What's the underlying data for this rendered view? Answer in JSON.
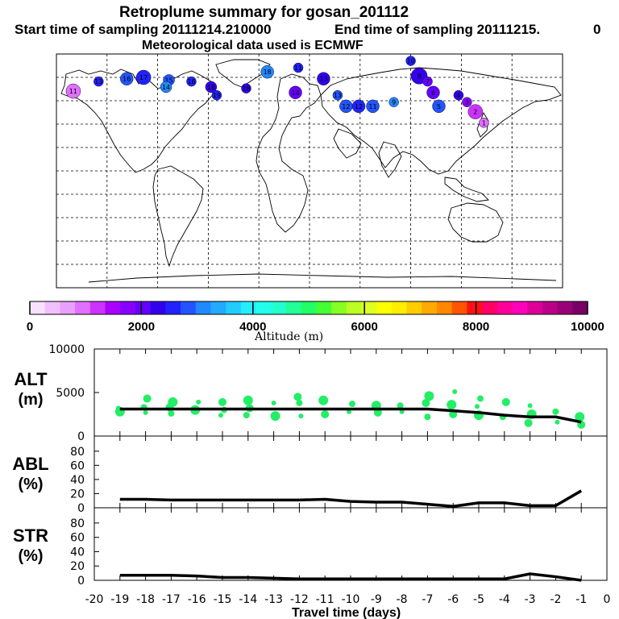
{
  "header": {
    "title": "Retroplume summary for gosan_201112",
    "start_label": "Start time of sampling 20111214.210000",
    "end_label": "End time of sampling 20111215.",
    "end_value": "0",
    "met_label": "Meteorological data used is ECMWF"
  },
  "colors": {
    "accent_green": "#22ee66",
    "line": "#000000",
    "colorbar": [
      "#f8e0ff",
      "#f0c0ff",
      "#e8a0ff",
      "#e070ff",
      "#cc33ff",
      "#aa00ff",
      "#8800ff",
      "#6600ff",
      "#3300ee",
      "#2222ff",
      "#2255ff",
      "#2288ff",
      "#22aaff",
      "#22ccff",
      "#22eeff",
      "#22ffee",
      "#22ffcc",
      "#22ff99",
      "#22ff66",
      "#44ff33",
      "#88ff22",
      "#bbff22",
      "#ddff22",
      "#ffff00",
      "#ffee00",
      "#ffcc00",
      "#ffaa00",
      "#ff8800",
      "#ff5500",
      "#ff1111",
      "#ff0066",
      "#ff0099",
      "#ff00bb",
      "#dd0099",
      "#bb0088",
      "#990077",
      "#770066"
    ]
  },
  "colorbar": {
    "ticks": [
      "0",
      "2000",
      "4000",
      "6000",
      "8000",
      "10000"
    ],
    "label": "Altitude (m)"
  },
  "map_markers": [
    {
      "lon": -168,
      "lat": 63,
      "alt": 1000,
      "label": "11"
    },
    {
      "lon": -150,
      "lat": 70,
      "alt": 2600,
      "label": "13"
    },
    {
      "lon": -130,
      "lat": 72,
      "alt": 2800,
      "label": "16"
    },
    {
      "lon": -118,
      "lat": 73,
      "alt": 2600,
      "label": "17"
    },
    {
      "lon": -100,
      "lat": 71,
      "alt": 2900,
      "label": "15"
    },
    {
      "lon": -102,
      "lat": 66,
      "alt": 3200,
      "label": "14"
    },
    {
      "lon": -84,
      "lat": 70,
      "alt": 2600,
      "label": "16"
    },
    {
      "lon": -70,
      "lat": 66,
      "alt": 2400,
      "label": "18"
    },
    {
      "lon": -66,
      "lat": 60,
      "alt": 2600,
      "label": "19"
    },
    {
      "lon": -45,
      "lat": 65,
      "alt": 2400,
      "label": "18"
    },
    {
      "lon": -30,
      "lat": 77,
      "alt": 3000,
      "label": "18"
    },
    {
      "lon": -8,
      "lat": 80,
      "alt": 2500,
      "label": "11"
    },
    {
      "lon": -10,
      "lat": 62,
      "alt": 2100,
      "label": "14"
    },
    {
      "lon": 10,
      "lat": 72,
      "alt": 2300,
      "label": "13"
    },
    {
      "lon": 20,
      "lat": 60,
      "alt": 2800,
      "label": "13"
    },
    {
      "lon": 26,
      "lat": 52,
      "alt": 2900,
      "label": "12"
    },
    {
      "lon": 35,
      "lat": 52,
      "alt": 2600,
      "label": "12"
    },
    {
      "lon": 45,
      "lat": 52,
      "alt": 2900,
      "label": "11"
    },
    {
      "lon": 60,
      "lat": 55,
      "alt": 3000,
      "label": "9"
    },
    {
      "lon": 72,
      "lat": 85,
      "alt": 2600,
      "label": "10"
    },
    {
      "lon": 78,
      "lat": 74,
      "alt": 2200,
      "label": "8"
    },
    {
      "lon": 84,
      "lat": 70,
      "alt": 2000,
      "label": "7"
    },
    {
      "lon": 88,
      "lat": 62,
      "alt": 2100,
      "label": "6"
    },
    {
      "lon": 92,
      "lat": 52,
      "alt": 2900,
      "label": "5"
    },
    {
      "lon": 106,
      "lat": 60,
      "alt": 2300,
      "label": "4"
    },
    {
      "lon": 112,
      "lat": 55,
      "alt": 1800,
      "label": "3"
    },
    {
      "lon": 118,
      "lat": 48,
      "alt": 1300,
      "label": "2"
    },
    {
      "lon": 124,
      "lat": 40,
      "alt": 1000,
      "label": "1"
    }
  ],
  "chart_data": [
    {
      "type": "scatter+line",
      "name": "ALT",
      "ylabel": "ALT",
      "yunit": "(m)",
      "ylim": [
        0,
        10000
      ],
      "yticks": [
        "0",
        "5000",
        "10000"
      ],
      "x": [
        -19,
        -18,
        -17,
        -16,
        -15,
        -14,
        -13,
        -12,
        -11,
        -10,
        -9,
        -8,
        -7,
        -6,
        -5,
        -4,
        -3,
        -2,
        -1
      ],
      "line": [
        3100,
        3100,
        3100,
        3100,
        3100,
        3100,
        3100,
        3100,
        3100,
        3100,
        3100,
        3100,
        3100,
        2900,
        2700,
        2400,
        2200,
        2200,
        1600
      ],
      "points": [
        [
          -19,
          3200
        ],
        [
          -19,
          2800
        ],
        [
          -18,
          4300
        ],
        [
          -18,
          3300
        ],
        [
          -18,
          2700
        ],
        [
          -17,
          3900
        ],
        [
          -17,
          3300
        ],
        [
          -17,
          2600
        ],
        [
          -16,
          3900
        ],
        [
          -16,
          3000
        ],
        [
          -15,
          3900
        ],
        [
          -15,
          3000
        ],
        [
          -15,
          2400
        ],
        [
          -14,
          4100
        ],
        [
          -14,
          3200
        ],
        [
          -14,
          2400
        ],
        [
          -13,
          3800
        ],
        [
          -13,
          2300
        ],
        [
          -12,
          4500
        ],
        [
          -12,
          3800
        ],
        [
          -12,
          2300
        ],
        [
          -11,
          4100
        ],
        [
          -11,
          2500
        ],
        [
          -10,
          3700
        ],
        [
          -10,
          2800
        ],
        [
          -9,
          3500
        ],
        [
          -9,
          2700
        ],
        [
          -8,
          3500
        ],
        [
          -8,
          2800
        ],
        [
          -7,
          4600
        ],
        [
          -7,
          3800
        ],
        [
          -7,
          2200
        ],
        [
          -6,
          5100
        ],
        [
          -6,
          3600
        ],
        [
          -6,
          2500
        ],
        [
          -5,
          4300
        ],
        [
          -5,
          3400
        ],
        [
          -5,
          2400
        ],
        [
          -4,
          3900
        ],
        [
          -4,
          2200
        ],
        [
          -3,
          3500
        ],
        [
          -3,
          2500
        ],
        [
          -3,
          1500
        ],
        [
          -2,
          2800
        ],
        [
          -2,
          1600
        ],
        [
          -1,
          2200
        ],
        [
          -1,
          1300
        ]
      ]
    },
    {
      "type": "line",
      "name": "ABL",
      "ylabel": "ABL",
      "yunit": "(%)",
      "ylim": [
        0,
        90
      ],
      "yticks": [
        "0",
        "20",
        "40",
        "60",
        "80"
      ],
      "x": [
        -19,
        -18,
        -17,
        -16,
        -15,
        -14,
        -13,
        -12,
        -11,
        -10,
        -9,
        -8,
        -7,
        -6,
        -5,
        -4,
        -3,
        -2,
        -1
      ],
      "values": [
        12,
        12,
        11,
        11,
        11,
        11,
        11,
        11,
        12,
        9,
        8,
        8,
        5,
        2,
        7,
        7,
        3,
        3,
        24
      ]
    },
    {
      "type": "line",
      "name": "STR",
      "ylabel": "STR",
      "yunit": "(%)",
      "ylim": [
        0,
        90
      ],
      "yticks": [
        "0",
        "20",
        "40",
        "60",
        "80"
      ],
      "x": [
        -19,
        -18,
        -17,
        -16,
        -15,
        -14,
        -13,
        -12,
        -11,
        -10,
        -9,
        -8,
        -7,
        -6,
        -5,
        -4,
        -3,
        -2,
        -1
      ],
      "values": [
        7,
        7,
        7,
        6,
        4,
        4,
        3,
        2,
        2,
        2,
        2,
        2,
        2,
        2,
        2,
        2,
        9,
        5,
        0
      ]
    }
  ],
  "xaxis": {
    "label": "Travel time (days)",
    "min": -20,
    "max": 0,
    "ticks": [
      "-20",
      "-19",
      "-18",
      "-17",
      "-16",
      "-15",
      "-14",
      "-13",
      "-12",
      "-11",
      "-10",
      "-9",
      "-8",
      "-7",
      "-6",
      "-5",
      "-4",
      "-3",
      "-2",
      "-1",
      "0"
    ]
  }
}
